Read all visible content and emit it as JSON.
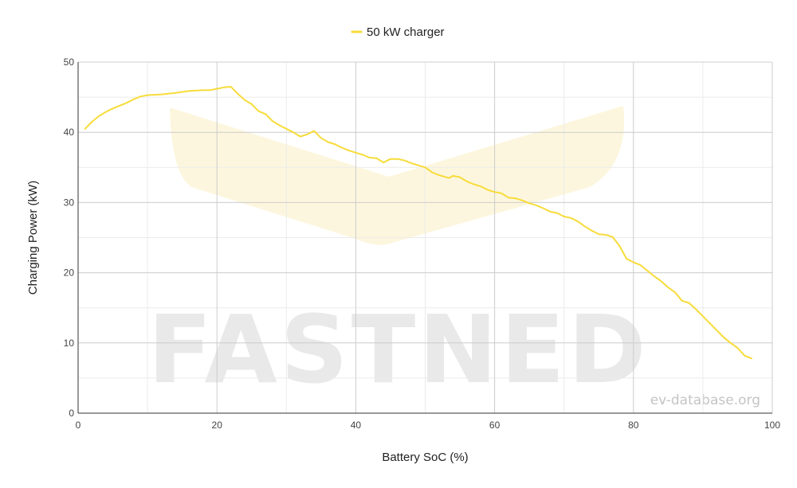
{
  "chart_data": {
    "type": "line",
    "xlabel": "Battery SoC (%)",
    "ylabel": "Charging Power (kW)",
    "xlim": [
      0,
      100
    ],
    "ylim": [
      0,
      50
    ],
    "x_ticks": [
      "0",
      "20",
      "40",
      "60",
      "80",
      "100"
    ],
    "y_ticks": [
      "0",
      "10",
      "20",
      "30",
      "40",
      "50"
    ],
    "grid": true,
    "legend": "top-center",
    "series": [
      {
        "name": "50 kW charger",
        "color": "#f7dc3a",
        "points": [
          [
            1,
            40.5
          ],
          [
            2,
            41.5
          ],
          [
            3,
            42.3
          ],
          [
            4,
            42.9
          ],
          [
            5,
            43.4
          ],
          [
            6,
            43.8
          ],
          [
            7,
            44.2
          ],
          [
            8,
            44.7
          ],
          [
            9,
            45.1
          ],
          [
            10,
            45.3
          ],
          [
            12,
            45.4
          ],
          [
            14,
            45.6
          ],
          [
            16,
            45.9
          ],
          [
            18,
            46.0
          ],
          [
            19,
            46.0
          ],
          [
            20,
            46.2
          ],
          [
            21,
            46.4
          ],
          [
            22,
            46.5
          ],
          [
            23,
            45.5
          ],
          [
            24,
            44.6
          ],
          [
            25,
            44.0
          ],
          [
            26,
            43.0
          ],
          [
            27,
            42.6
          ],
          [
            28,
            41.6
          ],
          [
            29,
            41.0
          ],
          [
            30,
            40.5
          ],
          [
            31,
            40.0
          ],
          [
            32,
            39.4
          ],
          [
            33,
            39.7
          ],
          [
            34,
            40.2
          ],
          [
            35,
            39.2
          ],
          [
            36,
            38.6
          ],
          [
            37,
            38.3
          ],
          [
            38,
            37.8
          ],
          [
            39,
            37.4
          ],
          [
            40,
            37.1
          ],
          [
            41,
            36.8
          ],
          [
            42,
            36.4
          ],
          [
            43,
            36.3
          ],
          [
            44,
            35.7
          ],
          [
            45,
            36.2
          ],
          [
            46,
            36.2
          ],
          [
            47,
            36.0
          ],
          [
            48,
            35.6
          ],
          [
            49,
            35.3
          ],
          [
            50,
            35.0
          ],
          [
            51,
            34.3
          ],
          [
            52,
            33.9
          ],
          [
            53,
            33.6
          ],
          [
            53.5,
            33.5
          ],
          [
            54,
            33.8
          ],
          [
            55,
            33.6
          ],
          [
            56,
            33.0
          ],
          [
            57,
            32.6
          ],
          [
            58,
            32.3
          ],
          [
            59,
            31.8
          ],
          [
            60,
            31.5
          ],
          [
            61,
            31.3
          ],
          [
            62,
            30.7
          ],
          [
            63,
            30.6
          ],
          [
            64,
            30.3
          ],
          [
            65,
            29.9
          ],
          [
            66,
            29.6
          ],
          [
            67,
            29.2
          ],
          [
            68,
            28.7
          ],
          [
            69,
            28.5
          ],
          [
            70,
            28.0
          ],
          [
            71,
            27.8
          ],
          [
            72,
            27.3
          ],
          [
            73,
            26.6
          ],
          [
            74,
            26.0
          ],
          [
            75,
            25.5
          ],
          [
            76,
            25.4
          ],
          [
            77,
            25.1
          ],
          [
            78,
            23.8
          ],
          [
            79,
            22.0
          ],
          [
            80,
            21.5
          ],
          [
            81,
            21.1
          ],
          [
            82,
            20.3
          ],
          [
            83,
            19.5
          ],
          [
            84,
            18.8
          ],
          [
            85,
            17.9
          ],
          [
            86,
            17.2
          ],
          [
            87,
            16.0
          ],
          [
            88,
            15.7
          ],
          [
            89,
            14.8
          ],
          [
            90,
            13.8
          ],
          [
            91,
            12.8
          ],
          [
            92,
            11.8
          ],
          [
            93,
            10.8
          ],
          [
            94,
            10.0
          ],
          [
            95,
            9.3
          ],
          [
            96,
            8.2
          ],
          [
            97,
            7.8
          ]
        ]
      }
    ]
  },
  "watermark": {
    "text": "FASTNED",
    "site": "ev-database.org"
  }
}
